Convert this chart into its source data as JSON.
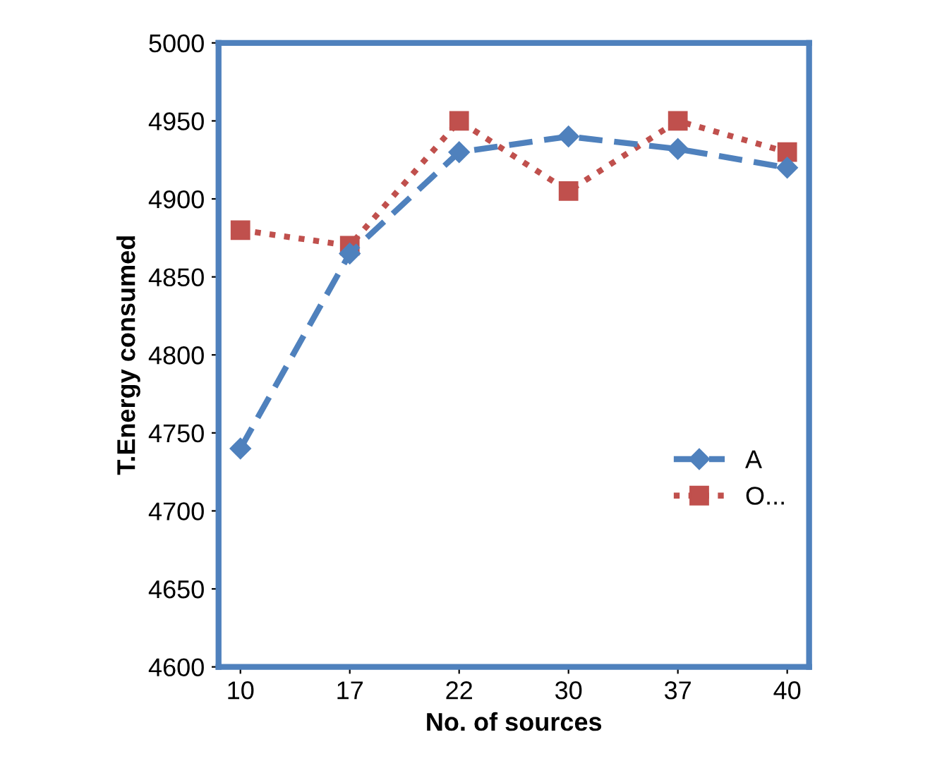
{
  "chart_data": {
    "type": "line",
    "xlabel": "No. of sources",
    "ylabel": "T.Energy consumed",
    "categories": [
      "10",
      "17",
      "22",
      "30",
      "37",
      "40"
    ],
    "series": [
      {
        "name": "A",
        "color": "#4f81bd",
        "values": [
          4740,
          4865,
          4930,
          4940,
          4932,
          4920
        ],
        "marker": "diamond",
        "line_style": "dashed"
      },
      {
        "name": "O...",
        "color": "#c0504d",
        "values": [
          4880,
          4870,
          4950,
          4905,
          4950,
          4930
        ],
        "marker": "square",
        "line_style": "dotted"
      }
    ],
    "ylim": [
      4600,
      5000
    ],
    "yticks": [
      4600,
      4650,
      4700,
      4750,
      4800,
      4850,
      4900,
      4950,
      5000
    ],
    "grid": false,
    "legend": "right"
  }
}
